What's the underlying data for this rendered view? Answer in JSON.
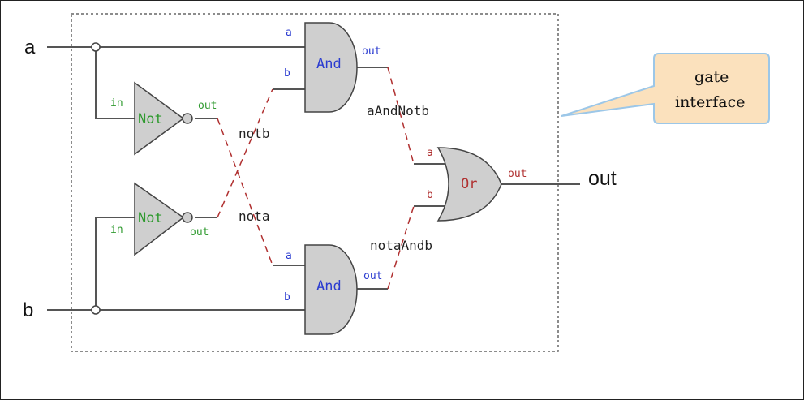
{
  "inputs": {
    "a": "a",
    "b": "b"
  },
  "output": "out",
  "gates": {
    "not_top": {
      "name": "Not",
      "in_pin": "in",
      "out_pin": "out"
    },
    "not_bottom": {
      "name": "Not",
      "in_pin": "in",
      "out_pin": "out"
    },
    "and_top": {
      "name": "And",
      "pin_a": "a",
      "pin_b": "b",
      "out_pin": "out"
    },
    "and_bottom": {
      "name": "And",
      "pin_a": "a",
      "pin_b": "b",
      "out_pin": "out"
    },
    "or": {
      "name": "Or",
      "pin_a": "a",
      "pin_b": "b",
      "out_pin": "out"
    }
  },
  "wires": {
    "notb": "notb",
    "nota": "nota",
    "aAndNotb": "aAndNotb",
    "notaAndb": "notaAndb"
  },
  "callout": {
    "line1": "gate",
    "line2": "interface"
  },
  "colors": {
    "and_label": "#2a3bd0",
    "not_label": "#2f9a2f",
    "or_label": "#b03030",
    "dashed_wire": "#b03030",
    "callout_fill": "#fbe1bd",
    "callout_border": "#9cc7e8",
    "gate_fill": "#cfcfcf"
  }
}
